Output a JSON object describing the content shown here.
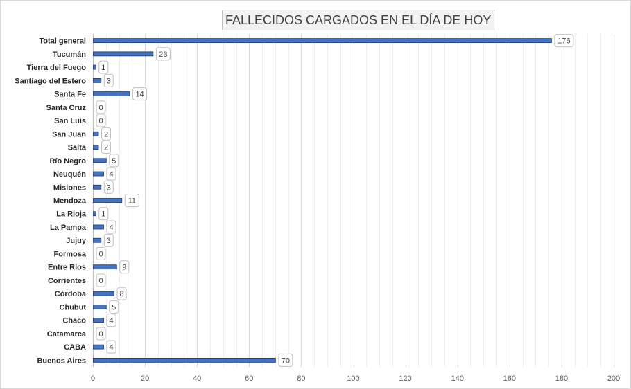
{
  "chart_data": {
    "type": "bar",
    "orientation": "horizontal",
    "title": "FALLECIDOS CARGADOS EN EL DÍA DE HOY",
    "categories": [
      "Total general",
      "Tucumán",
      "Tierra del Fuego",
      "Santiago del Estero",
      "Santa Fe",
      "Santa Cruz",
      "San Luis",
      "San Juan",
      "Salta",
      "Río Negro",
      "Neuquén",
      "Misiones",
      "Mendoza",
      "La Rioja",
      "La Pampa",
      "Jujuy",
      "Formosa",
      "Entre Ríos",
      "Corrientes",
      "Córdoba",
      "Chubut",
      "Chaco",
      "Catamarca",
      "CABA",
      "Buenos Aires"
    ],
    "values": [
      176,
      23,
      1,
      3,
      14,
      0,
      0,
      2,
      2,
      5,
      4,
      3,
      11,
      1,
      4,
      3,
      0,
      9,
      0,
      8,
      5,
      4,
      0,
      4,
      70
    ],
    "xlim": [
      0,
      200
    ],
    "xticks": [
      0,
      20,
      40,
      60,
      80,
      100,
      120,
      140,
      160,
      180,
      200
    ],
    "xlabel": "",
    "ylabel": "",
    "grid": true,
    "data_labels": true,
    "bar_color": "#4472c4",
    "bar_edge_color": "#1f3864"
  }
}
